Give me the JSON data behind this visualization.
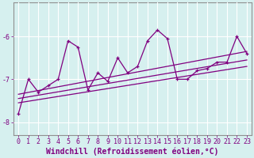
{
  "xlabel": "Windchill (Refroidissement éolien,°C)",
  "background_color": "#d6f0ef",
  "line_color": "#800080",
  "grid_color": "#ffffff",
  "x_values": [
    0,
    1,
    2,
    3,
    4,
    5,
    6,
    7,
    8,
    9,
    10,
    11,
    12,
    13,
    14,
    15,
    16,
    17,
    18,
    19,
    20,
    21,
    22,
    23
  ],
  "series1": [
    -7.8,
    -7.0,
    -7.3,
    -7.15,
    -7.0,
    -6.1,
    -6.25,
    -7.25,
    -6.85,
    -7.05,
    -6.5,
    -6.85,
    -6.7,
    -6.1,
    -5.85,
    -6.05,
    -7.0,
    -7.0,
    -6.8,
    -6.75,
    -6.6,
    -6.6,
    -6.0,
    -6.4
  ],
  "trend_lines": [
    {
      "x0": 0,
      "y0": -7.45,
      "x1": 23,
      "y1": -6.55
    },
    {
      "x0": 0,
      "y0": -7.35,
      "x1": 23,
      "y1": -6.35
    },
    {
      "x0": 0,
      "y0": -7.55,
      "x1": 23,
      "y1": -6.7
    }
  ],
  "ylim": [
    -8.3,
    -5.2
  ],
  "xlim": [
    -0.5,
    23.5
  ],
  "yticks": [
    -8,
    -7,
    -6
  ],
  "xticks": [
    0,
    1,
    2,
    3,
    4,
    5,
    6,
    7,
    8,
    9,
    10,
    11,
    12,
    13,
    14,
    15,
    16,
    17,
    18,
    19,
    20,
    21,
    22,
    23
  ],
  "tick_fontsize": 6,
  "xlabel_fontsize": 7
}
